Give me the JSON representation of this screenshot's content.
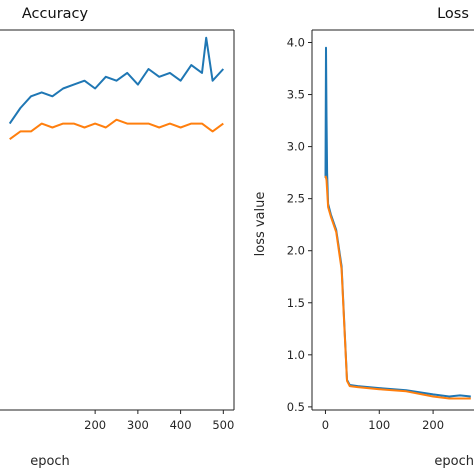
{
  "chart_data": [
    {
      "type": "line",
      "title": "Accuracy",
      "xlabel": "epoch",
      "ylabel": "",
      "xlim": [
        -25,
        525
      ],
      "ylim": [
        0.0,
        1.0
      ],
      "x_ticks": [
        200,
        300,
        400,
        500
      ],
      "grid": false,
      "series": [
        {
          "color": "#1f77b4",
          "x": [
            0,
            25,
            50,
            75,
            100,
            125,
            150,
            175,
            200,
            225,
            250,
            275,
            300,
            325,
            350,
            375,
            400,
            425,
            450,
            460,
            475,
            500
          ],
          "values": [
            0.62,
            0.66,
            0.69,
            0.7,
            0.69,
            0.71,
            0.72,
            0.73,
            0.71,
            0.74,
            0.73,
            0.75,
            0.72,
            0.76,
            0.74,
            0.75,
            0.73,
            0.77,
            0.75,
            0.84,
            0.73,
            0.76
          ]
        },
        {
          "color": "#ff7f0e",
          "x": [
            0,
            25,
            50,
            75,
            100,
            125,
            150,
            175,
            200,
            225,
            250,
            275,
            300,
            325,
            350,
            375,
            400,
            425,
            450,
            475,
            500
          ],
          "values": [
            0.58,
            0.6,
            0.6,
            0.62,
            0.61,
            0.62,
            0.62,
            0.61,
            0.62,
            0.61,
            0.63,
            0.62,
            0.62,
            0.62,
            0.61,
            0.62,
            0.61,
            0.62,
            0.62,
            0.6,
            0.62
          ]
        }
      ]
    },
    {
      "type": "line",
      "title": "Loss",
      "xlabel": "epoch",
      "ylabel": "loss value",
      "xlim": [
        -25,
        525
      ],
      "ylim": [
        0.47,
        4.12
      ],
      "y_ticks": [
        0.5,
        1.0,
        1.5,
        2.0,
        2.5,
        3.0,
        3.5,
        4.0
      ],
      "y_tick_labels": [
        "0.5",
        "1.0",
        "1.5",
        "2.0",
        "2.5",
        "3.0",
        "3.5",
        "4.0"
      ],
      "x_ticks": [
        0,
        100,
        200
      ],
      "grid": false,
      "series": [
        {
          "color": "#1f77b4",
          "x": [
            0,
            1,
            2,
            3,
            5,
            10,
            20,
            30,
            35,
            40,
            45,
            60,
            100,
            150,
            200,
            230,
            250,
            270
          ],
          "values": [
            2.7,
            3.95,
            3.3,
            2.75,
            2.45,
            2.35,
            2.2,
            1.85,
            1.3,
            0.76,
            0.71,
            0.7,
            0.68,
            0.66,
            0.62,
            0.6,
            0.61,
            0.6
          ]
        },
        {
          "color": "#ff7f0e",
          "x": [
            0,
            2,
            5,
            10,
            20,
            30,
            35,
            40,
            45,
            60,
            100,
            150,
            200,
            230,
            250,
            270
          ],
          "values": [
            2.72,
            2.68,
            2.42,
            2.33,
            2.18,
            1.82,
            1.28,
            0.75,
            0.7,
            0.69,
            0.67,
            0.65,
            0.6,
            0.58,
            0.58,
            0.58
          ]
        }
      ]
    }
  ]
}
